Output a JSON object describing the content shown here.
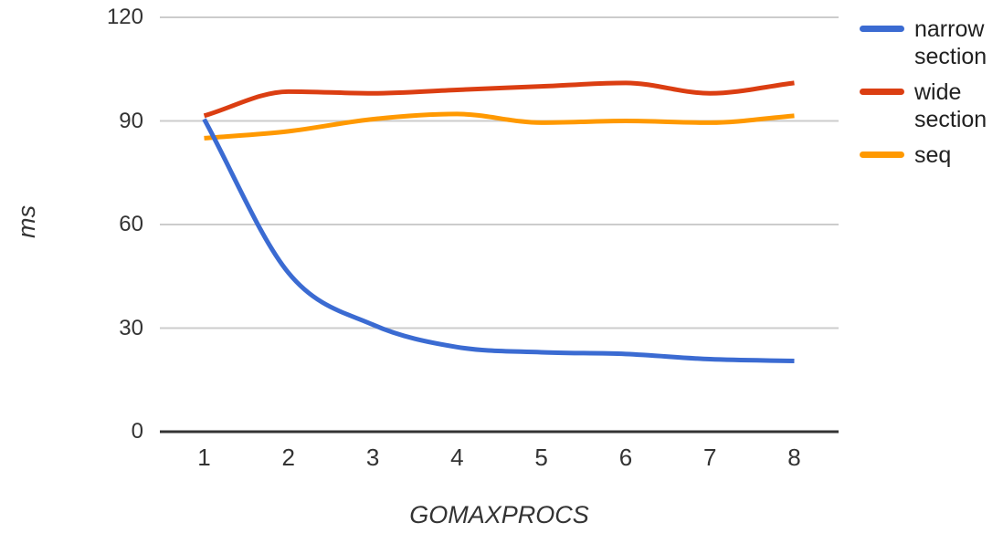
{
  "chart_data": {
    "type": "line",
    "smooth": true,
    "grid": true,
    "legend_position": "right",
    "x": [
      1,
      2,
      3,
      4,
      5,
      6,
      7,
      8
    ],
    "x_tick_labels": [
      "1",
      "2",
      "3",
      "4",
      "5",
      "6",
      "7",
      "8"
    ],
    "y_ticks": [
      0,
      30,
      60,
      90,
      120
    ],
    "ylim": [
      0,
      120
    ],
    "xlabel": "GOMAXPROCS",
    "ylabel": "ms",
    "series": [
      {
        "name": "narrow section",
        "color": "#3B6BD2",
        "values": [
          90.5,
          46,
          31,
          24.5,
          23,
          22.5,
          21,
          20.5
        ]
      },
      {
        "name": "wide section",
        "color": "#DB3E12",
        "values": [
          91.5,
          98.5,
          98,
          99,
          100,
          101,
          98,
          101
        ]
      },
      {
        "name": "seq",
        "color": "#FF9900",
        "values": [
          85,
          87,
          90.5,
          92,
          89.5,
          90,
          89.5,
          91.5
        ]
      }
    ]
  },
  "style": {
    "gridline_color": "#CCCCCC",
    "axis_line_color": "#333333",
    "tick_label_color": "#333333",
    "legend_text_color": "#212121"
  }
}
